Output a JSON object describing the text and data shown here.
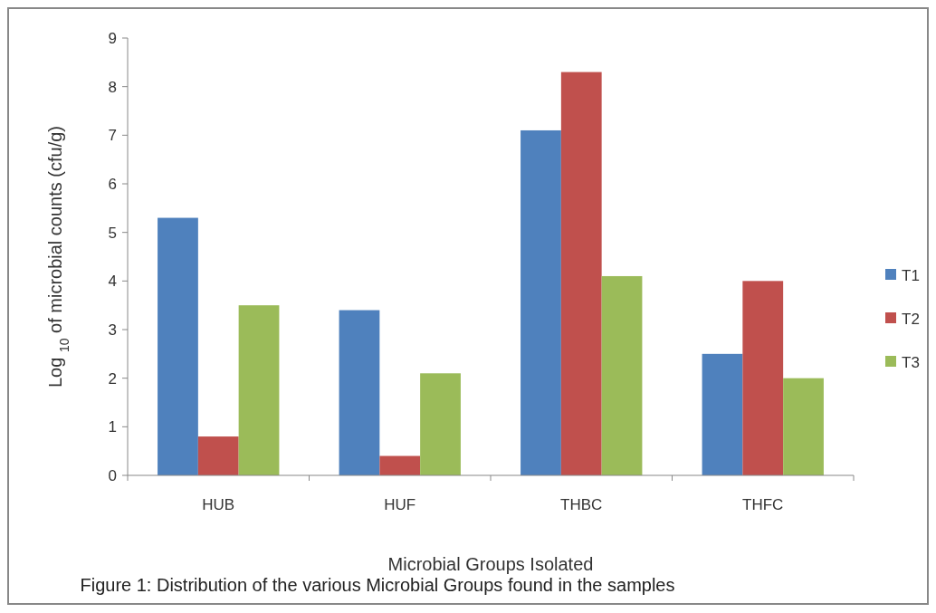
{
  "chart_data": {
    "type": "bar",
    "xlabel": "Microbial Groups Isolated",
    "ylabel": "Log $_{10}$ of microbial counts (cfu/g)",
    "categories": [
      "HUB",
      "HUF",
      "THBC",
      "THFC"
    ],
    "series": [
      {
        "name": "T1",
        "color": "#4f81bd",
        "values": [
          5.3,
          3.4,
          7.1,
          2.5
        ]
      },
      {
        "name": "T2",
        "color": "#c0504d",
        "values": [
          0.8,
          0.4,
          8.3,
          4.0
        ]
      },
      {
        "name": "T3",
        "color": "#9bbb59",
        "values": [
          3.5,
          2.1,
          4.1,
          2.0
        ]
      }
    ],
    "ylim": [
      0,
      9
    ],
    "yticks": [
      0,
      1,
      2,
      3,
      4,
      5,
      6,
      7,
      8,
      9
    ],
    "grid": false,
    "legend": "right",
    "annotations": [
      "Figure 1: Distribution of the various Microbial Groups found in the samples"
    ]
  }
}
